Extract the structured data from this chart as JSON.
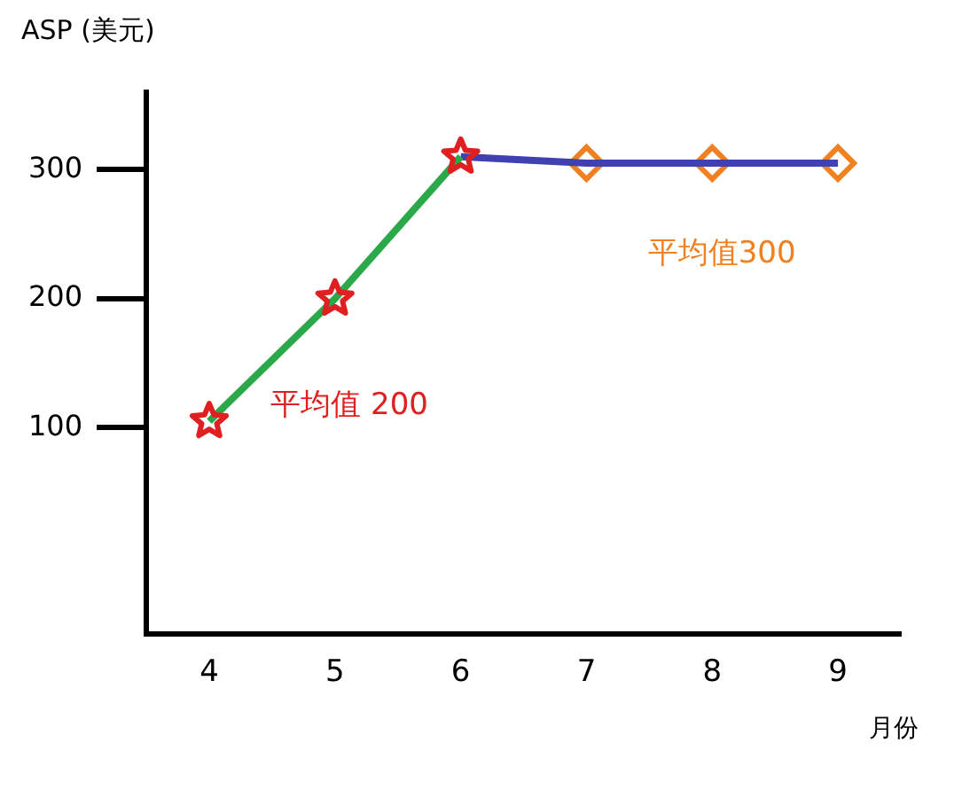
{
  "chart_data": {
    "type": "line",
    "ylabel": "ASP (美元)",
    "xlabel": "月份",
    "categories": [
      "4",
      "5",
      "6",
      "7",
      "8",
      "9"
    ],
    "series": [
      {
        "color": "#2aa84a",
        "values": [
          105,
          200,
          310,
          null,
          null,
          null
        ],
        "marker": "none"
      },
      {
        "type": "scatter",
        "color": "#e02020",
        "values": [
          105,
          200,
          310,
          null,
          null,
          null
        ],
        "marker": "star"
      },
      {
        "color": "#4040b0",
        "values": [
          null,
          null,
          310,
          305,
          305,
          305
        ],
        "marker": "none"
      },
      {
        "type": "scatter",
        "color": "#f08020",
        "values": [
          null,
          null,
          null,
          305,
          305,
          305
        ],
        "marker": "diamond"
      }
    ],
    "ylim": [
      -60,
      360
    ],
    "yticks": [
      100,
      200,
      300
    ],
    "grid": false,
    "legend": false,
    "annotations": [
      "平均值 200",
      "平均值300"
    ]
  }
}
